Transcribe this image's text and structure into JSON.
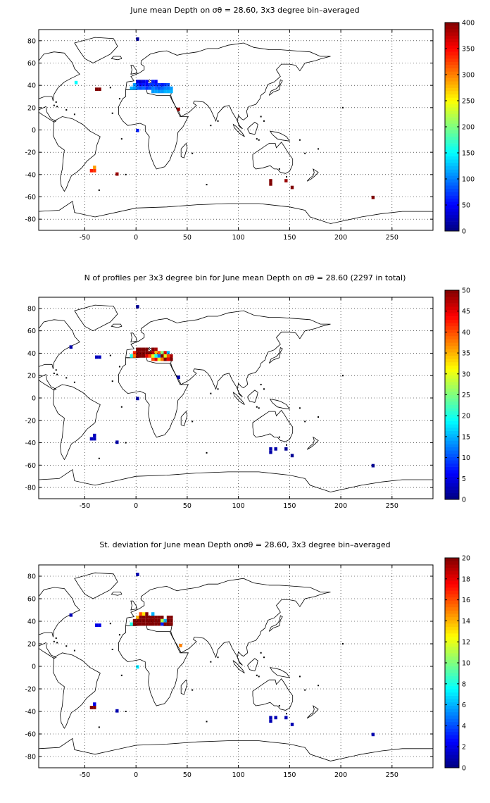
{
  "chart_data": [
    {
      "type": "heatmap",
      "title": "June mean Depth on σθ = 28.60, 3x3 degree bin–averaged",
      "xlim": [
        -95,
        290
      ],
      "ylim": [
        -90,
        90
      ],
      "xticks": [
        -50,
        0,
        50,
        100,
        150,
        200,
        250
      ],
      "yticks": [
        -80,
        -60,
        -40,
        -20,
        0,
        20,
        40,
        60,
        80
      ],
      "grid": true,
      "colorbar": {
        "min": 0,
        "max": 400,
        "ticks": [
          0,
          50,
          100,
          150,
          200,
          250,
          300,
          350,
          400
        ]
      },
      "cells": [
        {
          "x": 0,
          "y": 80,
          "v": 10
        },
        {
          "x": -60,
          "y": 41,
          "v": 150
        },
        {
          "x": -37,
          "y": 35,
          "v": 400
        },
        {
          "x": -40,
          "y": 35,
          "v": 400
        },
        {
          "x": -6,
          "y": 36,
          "v": 120
        },
        {
          "x": -3,
          "y": 39,
          "v": 110
        },
        {
          "x": -3,
          "y": 36,
          "v": 110
        },
        {
          "x": 0,
          "y": 42,
          "v": 40
        },
        {
          "x": 0,
          "y": 39,
          "v": 70
        },
        {
          "x": 0,
          "y": 36,
          "v": 90
        },
        {
          "x": 3,
          "y": 42,
          "v": 30
        },
        {
          "x": 3,
          "y": 39,
          "v": 50
        },
        {
          "x": 3,
          "y": 36,
          "v": 80
        },
        {
          "x": 6,
          "y": 42,
          "v": 40
        },
        {
          "x": 6,
          "y": 39,
          "v": 60
        },
        {
          "x": 6,
          "y": 36,
          "v": 90
        },
        {
          "x": 9,
          "y": 42,
          "v": 50
        },
        {
          "x": 9,
          "y": 39,
          "v": 50
        },
        {
          "x": 9,
          "y": 36,
          "v": 70
        },
        {
          "x": 12,
          "y": 39,
          "v": 70
        },
        {
          "x": 12,
          "y": 36,
          "v": 80
        },
        {
          "x": 15,
          "y": 42,
          "v": 60
        },
        {
          "x": 15,
          "y": 39,
          "v": 70
        },
        {
          "x": 15,
          "y": 36,
          "v": 100
        },
        {
          "x": 15,
          "y": 33,
          "v": 110
        },
        {
          "x": 18,
          "y": 42,
          "v": 50
        },
        {
          "x": 18,
          "y": 39,
          "v": 60
        },
        {
          "x": 18,
          "y": 36,
          "v": 90
        },
        {
          "x": 18,
          "y": 33,
          "v": 115
        },
        {
          "x": 21,
          "y": 39,
          "v": 70
        },
        {
          "x": 21,
          "y": 36,
          "v": 80
        },
        {
          "x": 21,
          "y": 33,
          "v": 110
        },
        {
          "x": 24,
          "y": 39,
          "v": 60
        },
        {
          "x": 24,
          "y": 36,
          "v": 90
        },
        {
          "x": 24,
          "y": 33,
          "v": 110
        },
        {
          "x": 27,
          "y": 39,
          "v": 70
        },
        {
          "x": 27,
          "y": 36,
          "v": 100
        },
        {
          "x": 27,
          "y": 33,
          "v": 120
        },
        {
          "x": 30,
          "y": 39,
          "v": 80
        },
        {
          "x": 30,
          "y": 36,
          "v": 100
        },
        {
          "x": 30,
          "y": 33,
          "v": 120
        },
        {
          "x": 33,
          "y": 36,
          "v": 110
        },
        {
          "x": 33,
          "y": 33,
          "v": 120
        },
        {
          "x": 40,
          "y": 17,
          "v": 390
        },
        {
          "x": 0,
          "y": -2,
          "v": 60
        },
        {
          "x": -45,
          "y": -38,
          "v": 340
        },
        {
          "x": -42,
          "y": -38,
          "v": 330
        },
        {
          "x": -42,
          "y": -35,
          "v": 290
        },
        {
          "x": -20,
          "y": -41,
          "v": 390
        },
        {
          "x": 130,
          "y": -47,
          "v": 400
        },
        {
          "x": 130,
          "y": -50,
          "v": 400
        },
        {
          "x": 145,
          "y": -47,
          "v": 390
        },
        {
          "x": 151,
          "y": -53,
          "v": 400
        },
        {
          "x": 230,
          "y": -62,
          "v": 400
        }
      ]
    },
    {
      "type": "heatmap",
      "title": "N of profiles per 3x3 degree bin for June mean Depth on σθ = 28.60 (2297 in total)",
      "xlim": [
        -95,
        290
      ],
      "ylim": [
        -90,
        90
      ],
      "xticks": [
        -50,
        0,
        50,
        100,
        150,
        200,
        250
      ],
      "yticks": [
        -80,
        -60,
        -40,
        -20,
        0,
        20,
        40,
        60,
        80
      ],
      "grid": true,
      "colorbar": {
        "min": 0,
        "max": 50,
        "ticks": [
          0,
          5,
          10,
          15,
          20,
          25,
          30,
          35,
          40,
          45,
          50
        ]
      },
      "cells": [
        {
          "x": 0,
          "y": 80,
          "v": 1
        },
        {
          "x": -65,
          "y": 44,
          "v": 2
        },
        {
          "x": -37,
          "y": 35,
          "v": 3
        },
        {
          "x": -40,
          "y": 35,
          "v": 3
        },
        {
          "x": -6,
          "y": 36,
          "v": 20
        },
        {
          "x": -3,
          "y": 39,
          "v": 42
        },
        {
          "x": -3,
          "y": 36,
          "v": 38
        },
        {
          "x": 0,
          "y": 42,
          "v": 50
        },
        {
          "x": 0,
          "y": 39,
          "v": 50
        },
        {
          "x": 0,
          "y": 36,
          "v": 50
        },
        {
          "x": 3,
          "y": 42,
          "v": 50
        },
        {
          "x": 3,
          "y": 39,
          "v": 50
        },
        {
          "x": 3,
          "y": 36,
          "v": 50
        },
        {
          "x": 6,
          "y": 42,
          "v": 50
        },
        {
          "x": 6,
          "y": 39,
          "v": 50
        },
        {
          "x": 6,
          "y": 36,
          "v": 50
        },
        {
          "x": 9,
          "y": 42,
          "v": 50
        },
        {
          "x": 9,
          "y": 39,
          "v": 50
        },
        {
          "x": 9,
          "y": 36,
          "v": 45
        },
        {
          "x": 12,
          "y": 39,
          "v": 50
        },
        {
          "x": 12,
          "y": 36,
          "v": 40
        },
        {
          "x": 15,
          "y": 42,
          "v": 50
        },
        {
          "x": 15,
          "y": 39,
          "v": 47
        },
        {
          "x": 15,
          "y": 36,
          "v": 30
        },
        {
          "x": 15,
          "y": 33,
          "v": 40
        },
        {
          "x": 18,
          "y": 42,
          "v": 48
        },
        {
          "x": 18,
          "y": 39,
          "v": 35
        },
        {
          "x": 18,
          "y": 36,
          "v": 20
        },
        {
          "x": 18,
          "y": 33,
          "v": 45
        },
        {
          "x": 21,
          "y": 39,
          "v": 40
        },
        {
          "x": 21,
          "y": 36,
          "v": 12
        },
        {
          "x": 21,
          "y": 33,
          "v": 30
        },
        {
          "x": 24,
          "y": 39,
          "v": 25
        },
        {
          "x": 24,
          "y": 36,
          "v": 50
        },
        {
          "x": 24,
          "y": 33,
          "v": 38
        },
        {
          "x": 27,
          "y": 39,
          "v": 45
        },
        {
          "x": 27,
          "y": 36,
          "v": 30
        },
        {
          "x": 27,
          "y": 33,
          "v": 50
        },
        {
          "x": 30,
          "y": 39,
          "v": 15
        },
        {
          "x": 30,
          "y": 36,
          "v": 40
        },
        {
          "x": 30,
          "y": 33,
          "v": 45
        },
        {
          "x": 33,
          "y": 36,
          "v": 48
        },
        {
          "x": 33,
          "y": 33,
          "v": 50
        },
        {
          "x": 40,
          "y": 17,
          "v": 2
        },
        {
          "x": 0,
          "y": -2,
          "v": 2
        },
        {
          "x": -45,
          "y": -38,
          "v": 3
        },
        {
          "x": -42,
          "y": -38,
          "v": 3
        },
        {
          "x": -42,
          "y": -35,
          "v": 3
        },
        {
          "x": -20,
          "y": -41,
          "v": 2
        },
        {
          "x": 130,
          "y": -47,
          "v": 2
        },
        {
          "x": 130,
          "y": -50,
          "v": 2
        },
        {
          "x": 135,
          "y": -47,
          "v": 2
        },
        {
          "x": 145,
          "y": -47,
          "v": 1
        },
        {
          "x": 151,
          "y": -53,
          "v": 1
        },
        {
          "x": 230,
          "y": -62,
          "v": 1
        }
      ]
    },
    {
      "type": "heatmap",
      "title": "St. deviation for June mean Depth onσθ = 28.60, 3x3 degree bin–averaged",
      "xlim": [
        -95,
        290
      ],
      "ylim": [
        -90,
        90
      ],
      "xticks": [
        -50,
        0,
        50,
        100,
        150,
        200,
        250
      ],
      "yticks": [
        -80,
        -60,
        -40,
        -20,
        0,
        20,
        40,
        60,
        80
      ],
      "grid": true,
      "colorbar": {
        "min": 0,
        "max": 20,
        "ticks": [
          0,
          2,
          4,
          6,
          8,
          10,
          12,
          14,
          16,
          18,
          20
        ]
      },
      "cells": [
        {
          "x": 0,
          "y": 80,
          "v": 1
        },
        {
          "x": -65,
          "y": 44,
          "v": 1
        },
        {
          "x": -37,
          "y": 35,
          "v": 2
        },
        {
          "x": -40,
          "y": 35,
          "v": 2
        },
        {
          "x": -6,
          "y": 36,
          "v": 8
        },
        {
          "x": -3,
          "y": 39,
          "v": 20
        },
        {
          "x": -3,
          "y": 36,
          "v": 20
        },
        {
          "x": 0,
          "y": 42,
          "v": 14
        },
        {
          "x": 0,
          "y": 39,
          "v": 20
        },
        {
          "x": 0,
          "y": 36,
          "v": 20
        },
        {
          "x": 3,
          "y": 45,
          "v": 16
        },
        {
          "x": 3,
          "y": 42,
          "v": 20
        },
        {
          "x": 3,
          "y": 39,
          "v": 20
        },
        {
          "x": 3,
          "y": 36,
          "v": 20
        },
        {
          "x": 6,
          "y": 45,
          "v": 13
        },
        {
          "x": 6,
          "y": 42,
          "v": 20
        },
        {
          "x": 6,
          "y": 39,
          "v": 20
        },
        {
          "x": 6,
          "y": 36,
          "v": 20
        },
        {
          "x": 9,
          "y": 45,
          "v": 20
        },
        {
          "x": 9,
          "y": 42,
          "v": 20
        },
        {
          "x": 9,
          "y": 39,
          "v": 20
        },
        {
          "x": 9,
          "y": 36,
          "v": 20
        },
        {
          "x": 12,
          "y": 42,
          "v": 20
        },
        {
          "x": 12,
          "y": 39,
          "v": 20
        },
        {
          "x": 12,
          "y": 36,
          "v": 20
        },
        {
          "x": 15,
          "y": 45,
          "v": 6
        },
        {
          "x": 15,
          "y": 42,
          "v": 20
        },
        {
          "x": 15,
          "y": 39,
          "v": 20
        },
        {
          "x": 15,
          "y": 36,
          "v": 20
        },
        {
          "x": 18,
          "y": 42,
          "v": 20
        },
        {
          "x": 18,
          "y": 39,
          "v": 20
        },
        {
          "x": 18,
          "y": 36,
          "v": 20
        },
        {
          "x": 21,
          "y": 42,
          "v": 20
        },
        {
          "x": 21,
          "y": 39,
          "v": 20
        },
        {
          "x": 21,
          "y": 36,
          "v": 20
        },
        {
          "x": 24,
          "y": 42,
          "v": 20
        },
        {
          "x": 24,
          "y": 39,
          "v": 11
        },
        {
          "x": 24,
          "y": 36,
          "v": 3
        },
        {
          "x": 27,
          "y": 39,
          "v": 6
        },
        {
          "x": 27,
          "y": 36,
          "v": 20
        },
        {
          "x": 30,
          "y": 42,
          "v": 20
        },
        {
          "x": 30,
          "y": 39,
          "v": 20
        },
        {
          "x": 30,
          "y": 36,
          "v": 20
        },
        {
          "x": 33,
          "y": 42,
          "v": 20
        },
        {
          "x": 33,
          "y": 39,
          "v": 20
        },
        {
          "x": 33,
          "y": 36,
          "v": 20
        },
        {
          "x": 42,
          "y": 17,
          "v": 15
        },
        {
          "x": 0,
          "y": -2,
          "v": 7
        },
        {
          "x": -45,
          "y": -38,
          "v": 20
        },
        {
          "x": -42,
          "y": -38,
          "v": 20
        },
        {
          "x": -42,
          "y": -35,
          "v": 2
        },
        {
          "x": -20,
          "y": -41,
          "v": 1
        },
        {
          "x": 130,
          "y": -47,
          "v": 1
        },
        {
          "x": 130,
          "y": -50,
          "v": 1
        },
        {
          "x": 135,
          "y": -47,
          "v": 1
        },
        {
          "x": 145,
          "y": -47,
          "v": 1
        },
        {
          "x": 151,
          "y": -53,
          "v": 1
        },
        {
          "x": 230,
          "y": -62,
          "v": 1
        }
      ]
    }
  ]
}
